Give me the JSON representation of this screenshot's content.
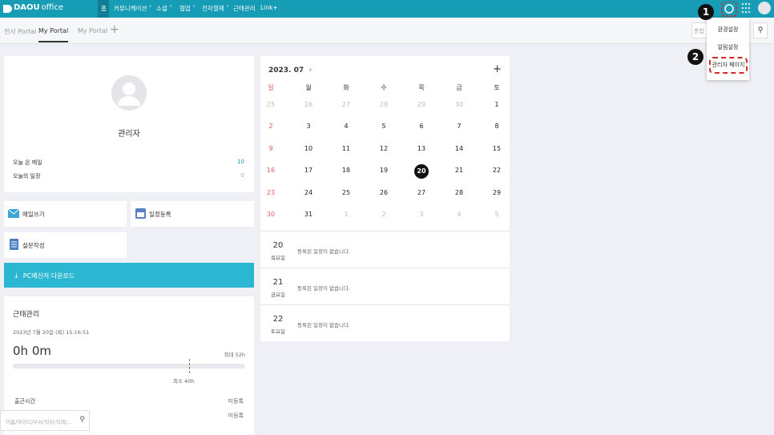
{
  "header": {
    "logo_brand": "DAOU",
    "logo_product": "office",
    "nav": [
      "홈",
      "커뮤니케이션",
      "소셜",
      "협업",
      "전자결재",
      "근태관리",
      "Link+"
    ]
  },
  "tabs": {
    "items": [
      "전사 Portal",
      "My Portal",
      "My Portal"
    ],
    "search_placeholder": "통합"
  },
  "settings_menu": {
    "items": [
      "환경설정",
      "알림설정",
      "관리자 페이지"
    ],
    "badges": [
      "1",
      "2"
    ]
  },
  "profile": {
    "name": "관리자",
    "stats": [
      {
        "label": "오늘 온 메일",
        "value": "10"
      },
      {
        "label": "오늘의 일정",
        "value": "0"
      }
    ]
  },
  "quick_actions": [
    "메일쓰기",
    "일정등록",
    "설문작성"
  ],
  "download_bar": "PC메신저 다운로드",
  "attendance": {
    "title": "근태관리",
    "date": "2023년 7월 20일 (목) 15:16:51",
    "hours": "0h",
    "minutes": "0m",
    "max": "최대 52h",
    "min": "최소 40h",
    "rows": [
      {
        "label": "출근시간",
        "value": "미등록"
      },
      {
        "label": "",
        "value": "미등록"
      }
    ]
  },
  "people_search_placeholder": "이름/아이디/부서/직위/직책/...",
  "calendar": {
    "title": "2023. 07",
    "weekdays": [
      "일",
      "월",
      "화",
      "수",
      "목",
      "금",
      "토"
    ],
    "weeks": [
      [
        25,
        26,
        27,
        28,
        29,
        30,
        1
      ],
      [
        2,
        3,
        4,
        5,
        6,
        7,
        8
      ],
      [
        9,
        10,
        11,
        12,
        13,
        14,
        15
      ],
      [
        16,
        17,
        18,
        19,
        20,
        21,
        22
      ],
      [
        23,
        24,
        25,
        26,
        27,
        28,
        29
      ],
      [
        30,
        31,
        1,
        2,
        3,
        4,
        5
      ]
    ],
    "today": 20,
    "agenda": [
      {
        "day": "20",
        "weekday": "목요일",
        "text": "등록된 일정이 없습니다."
      },
      {
        "day": "21",
        "weekday": "금요일",
        "text": "등록된 일정이 없습니다."
      },
      {
        "day": "22",
        "weekday": "토요일",
        "text": "등록된 일정이 없습니다."
      }
    ]
  }
}
